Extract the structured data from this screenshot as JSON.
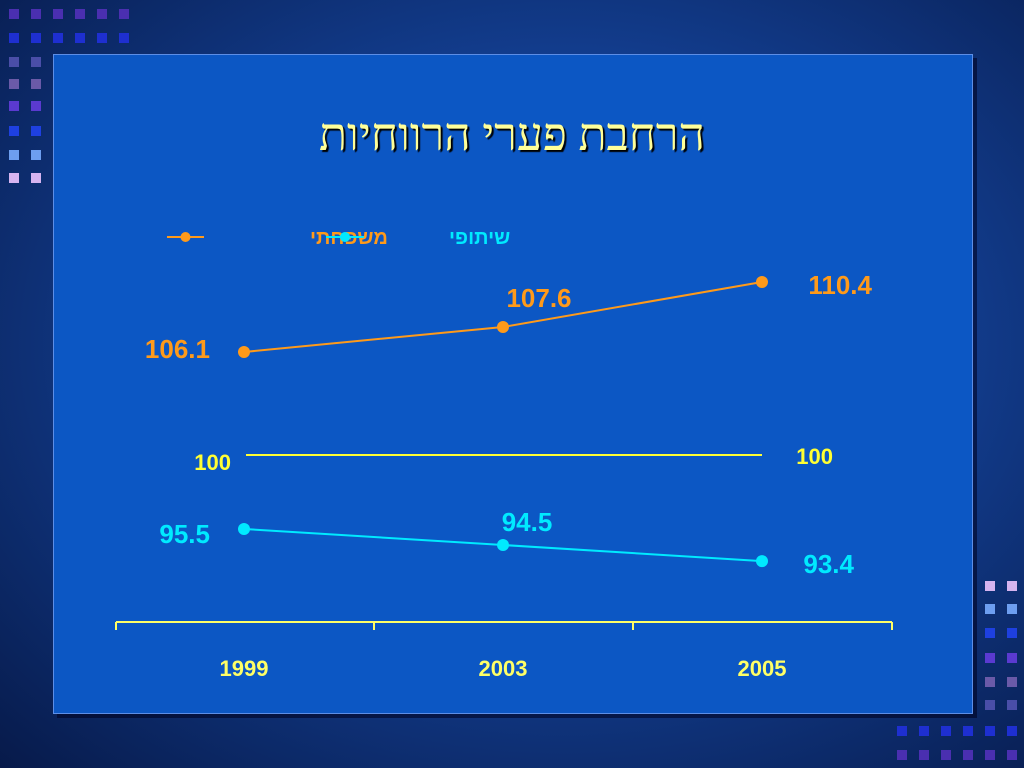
{
  "slide": {
    "title": "הרחבת פערי הרווחיות"
  },
  "colors": {
    "family": "#ff9a1a",
    "shared": "#00eaff",
    "baseline": "#ffff33",
    "axis": "#ffff66",
    "title": "#ffff99"
  },
  "chart_data": {
    "type": "line",
    "categories": [
      "1999",
      "2003",
      "2005"
    ],
    "series": [
      {
        "name": "משפחתי",
        "values": [
          106.1,
          107.6,
          110.4
        ],
        "color": "#ff9a1a"
      },
      {
        "name": "שיתופי",
        "values": [
          95.5,
          94.5,
          93.4
        ],
        "color": "#00eaff"
      }
    ],
    "reference_line": {
      "value": 100,
      "labels": [
        "100",
        "100"
      ]
    },
    "legend": {
      "position": "top-left",
      "items": [
        "משפחתי",
        "שיתופי"
      ]
    },
    "grid": false
  }
}
